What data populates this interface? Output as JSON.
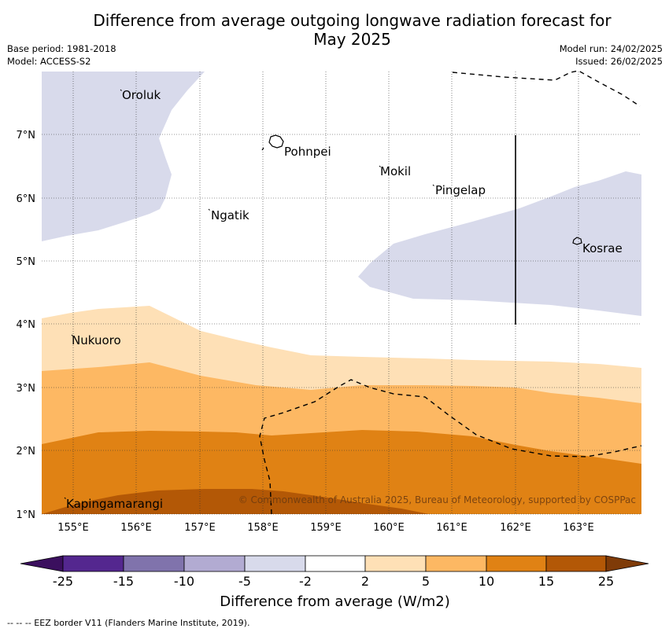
{
  "title": "Difference from average outgoing longwave radiation forecast for May 2025",
  "base_period": "Base period: 1981-2018",
  "model": "Model: ACCESS-S2",
  "model_run": "Model run: 24/02/2025",
  "issued": "Issued: 26/02/2025",
  "copyright": "© Commonwealth of Australia 2025, Bureau of Meteorology, supported by COSPPac",
  "footnote": "--  --  -- EEZ border V11 (Flanders Marine Institute, 2019).",
  "colorbar": {
    "title": "Difference from average (W/m2)",
    "ticks": [
      "-25",
      "-15",
      "-10",
      "-5",
      "-2",
      "2",
      "5",
      "10",
      "15",
      "25"
    ],
    "colors": [
      "#3b0f5e",
      "#54278f",
      "#8073ac",
      "#b2abd2",
      "#d8daeb",
      "#ffffff",
      "#fee0b6",
      "#fdb863",
      "#e08214",
      "#b35806",
      "#7f3b08"
    ]
  },
  "axes": {
    "lon_labels": [
      "155°E",
      "156°E",
      "157°E",
      "158°E",
      "159°E",
      "160°E",
      "161°E",
      "162°E",
      "163°E"
    ],
    "lat_labels": [
      "1°N",
      "2°N",
      "3°N",
      "4°N",
      "5°N",
      "6°N",
      "7°N"
    ]
  },
  "places": [
    "Oroluk",
    "Pohnpei",
    "Mokil",
    "Pingelap",
    "Ngatik",
    "Kosrae",
    "Nukuoro",
    "Kapingamarangi"
  ]
}
